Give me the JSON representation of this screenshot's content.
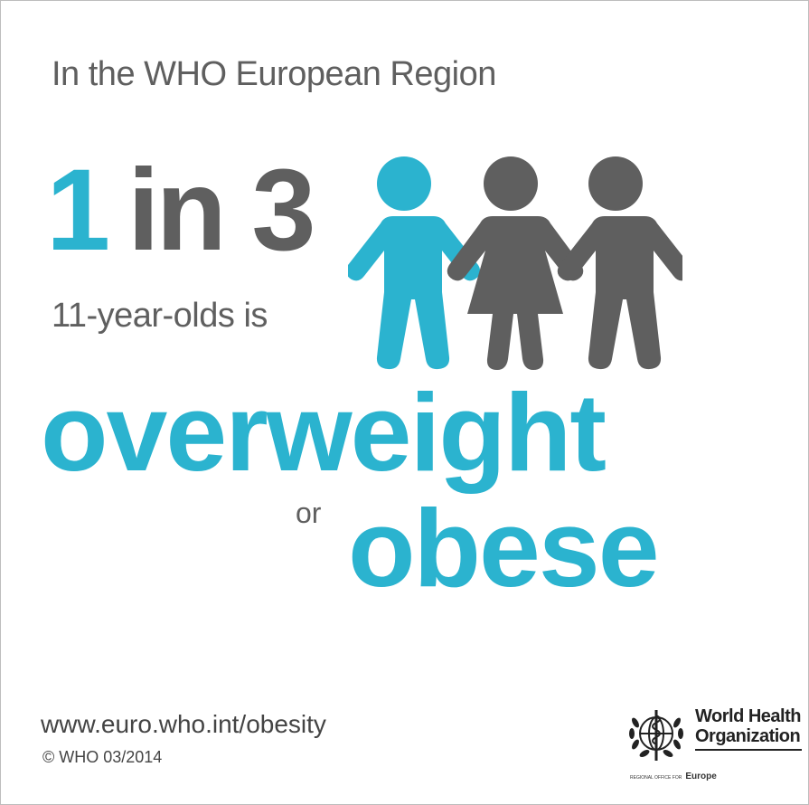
{
  "header": {
    "text": "In the WHO European Region"
  },
  "stat": {
    "one": "1",
    "in_three": "in 3",
    "subject": "11-year-olds is"
  },
  "outcome": {
    "word1": "overweight",
    "connector": "or",
    "word2": "obese"
  },
  "footer": {
    "url": "www.euro.who.int/obesity",
    "copyright": "© WHO 03/2014"
  },
  "logo": {
    "line1": "World Health",
    "line2": "Organization",
    "region_prefix": "REGIONAL OFFICE FOR",
    "region_name": "Europe"
  },
  "colors": {
    "accent": "#2bb3cf",
    "gray": "#5f5f5f"
  },
  "icons": [
    "child-figure-icon",
    "girl-figure-icon",
    "child-figure-icon",
    "who-emblem-icon"
  ]
}
